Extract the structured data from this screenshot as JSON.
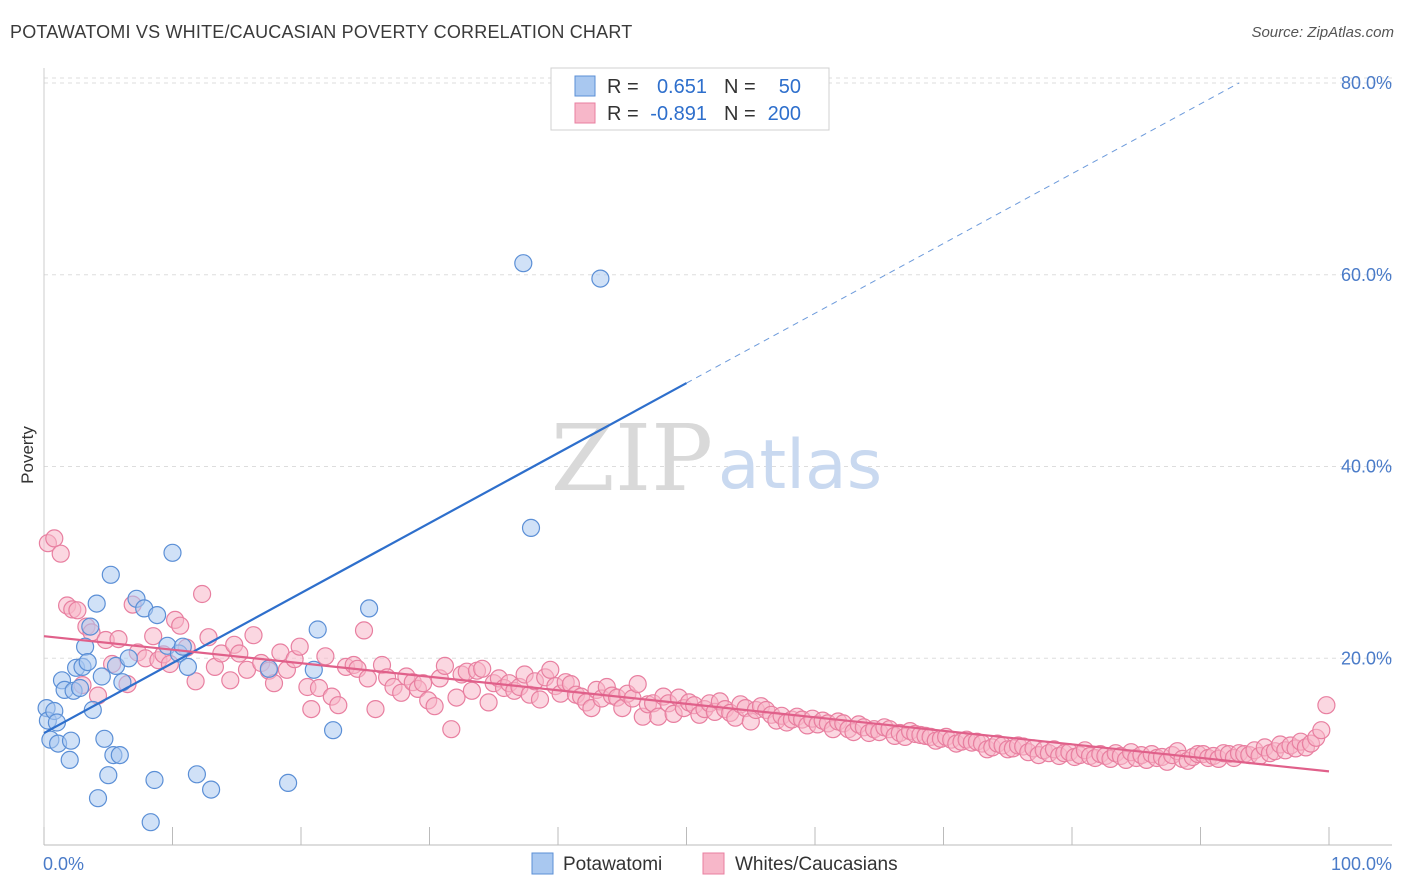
{
  "title": "POTAWATOMI VS WHITE/CAUCASIAN POVERTY CORRELATION CHART",
  "source": "Source: ZipAtlas.com",
  "watermark": {
    "zip": "ZIP",
    "atlas": "atlas"
  },
  "colors": {
    "blue_fill": "#a9c8f0",
    "blue_stroke": "#5b8fd6",
    "blue_line": "#2e6fcc",
    "pink_fill": "#f7b7c9",
    "pink_stroke": "#e87fa0",
    "pink_line": "#e0608a",
    "tick_text": "#4a7bc8",
    "grid": "#dddddd"
  },
  "legend": {
    "rows": [
      {
        "r_label": "R =",
        "r_value": "0.651",
        "n_label": "N =",
        "n_value": "50"
      },
      {
        "r_label": "R =",
        "r_value": "-0.891",
        "n_label": "N =",
        "n_value": "200"
      }
    ]
  },
  "chart_data": {
    "type": "scatter",
    "xlabel": "",
    "ylabel": "Poverty",
    "xlim": [
      0,
      100
    ],
    "ylim": [
      0,
      80
    ],
    "x_tick_labels": [
      "0.0%",
      "100.0%"
    ],
    "y_ticks": [
      20,
      40,
      60,
      80
    ],
    "y_tick_labels": [
      "20.0%",
      "40.0%",
      "60.0%",
      "80.0%"
    ],
    "grid": "horizontal dashed",
    "legend_position": "top-center",
    "series": [
      {
        "name": "Potawatomi",
        "trend": {
          "x0": 0,
          "y0": 12.2,
          "x1": 50,
          "y1": 48.7,
          "dashed_to_x": 93,
          "dashed_to_y": 80
        },
        "points": [
          [
            0.2,
            14.8
          ],
          [
            0.3,
            13.5
          ],
          [
            0.5,
            11.5
          ],
          [
            0.8,
            14.5
          ],
          [
            1.0,
            13.3
          ],
          [
            1.1,
            11.1
          ],
          [
            1.4,
            17.7
          ],
          [
            1.6,
            16.7
          ],
          [
            2.0,
            9.4
          ],
          [
            2.1,
            11.4
          ],
          [
            2.3,
            16.6
          ],
          [
            2.5,
            19.0
          ],
          [
            2.8,
            16.9
          ],
          [
            3.0,
            19.1
          ],
          [
            3.2,
            21.2
          ],
          [
            3.4,
            19.6
          ],
          [
            3.6,
            23.3
          ],
          [
            3.8,
            14.6
          ],
          [
            4.1,
            25.7
          ],
          [
            4.2,
            5.4
          ],
          [
            4.5,
            18.1
          ],
          [
            4.7,
            11.6
          ],
          [
            5.0,
            7.8
          ],
          [
            5.2,
            28.7
          ],
          [
            5.4,
            9.9
          ],
          [
            5.6,
            19.2
          ],
          [
            5.9,
            9.9
          ],
          [
            6.1,
            17.5
          ],
          [
            6.6,
            20.0
          ],
          [
            7.2,
            26.2
          ],
          [
            7.8,
            25.2
          ],
          [
            8.3,
            2.9
          ],
          [
            8.6,
            7.3
          ],
          [
            8.8,
            24.5
          ],
          [
            9.6,
            21.3
          ],
          [
            10.0,
            31.0
          ],
          [
            10.5,
            20.5
          ],
          [
            10.8,
            21.2
          ],
          [
            11.2,
            19.1
          ],
          [
            11.9,
            7.9
          ],
          [
            13.0,
            6.3
          ],
          [
            17.5,
            18.9
          ],
          [
            19.0,
            7.0
          ],
          [
            21.3,
            23.0
          ],
          [
            21.0,
            18.8
          ],
          [
            22.5,
            12.5
          ],
          [
            25.3,
            25.2
          ],
          [
            37.9,
            33.6
          ],
          [
            37.3,
            61.2
          ],
          [
            43.3,
            59.6
          ]
        ]
      },
      {
        "name": "Whites/Caucasians",
        "trend": {
          "x0": 0,
          "y0": 22.3,
          "x1": 100,
          "y1": 8.2
        },
        "points": [
          [
            0.3,
            32.0
          ],
          [
            0.8,
            32.5
          ],
          [
            1.3,
            30.9
          ],
          [
            1.8,
            25.5
          ],
          [
            2.2,
            25.1
          ],
          [
            2.6,
            25.0
          ],
          [
            3.0,
            17.2
          ],
          [
            3.3,
            23.3
          ],
          [
            3.7,
            22.7
          ],
          [
            4.2,
            16.1
          ],
          [
            4.8,
            21.9
          ],
          [
            5.3,
            19.4
          ],
          [
            5.8,
            22.0
          ],
          [
            6.5,
            17.3
          ],
          [
            6.9,
            25.6
          ],
          [
            7.3,
            20.6
          ],
          [
            7.9,
            20.0
          ],
          [
            8.5,
            22.3
          ],
          [
            8.9,
            19.8
          ],
          [
            9.3,
            20.4
          ],
          [
            9.8,
            19.4
          ],
          [
            10.2,
            24.0
          ],
          [
            10.6,
            23.4
          ],
          [
            11.1,
            21.1
          ],
          [
            11.8,
            17.6
          ],
          [
            12.3,
            26.7
          ],
          [
            12.8,
            22.2
          ],
          [
            13.3,
            19.1
          ],
          [
            13.8,
            20.5
          ],
          [
            14.5,
            17.7
          ],
          [
            14.8,
            21.4
          ],
          [
            15.2,
            20.5
          ],
          [
            15.8,
            18.8
          ],
          [
            16.3,
            22.4
          ],
          [
            16.9,
            19.5
          ],
          [
            17.5,
            18.7
          ],
          [
            17.9,
            17.4
          ],
          [
            18.4,
            20.6
          ],
          [
            18.9,
            18.8
          ],
          [
            19.5,
            19.9
          ],
          [
            19.9,
            21.2
          ],
          [
            20.5,
            17.0
          ],
          [
            20.8,
            14.7
          ],
          [
            21.4,
            16.9
          ],
          [
            21.9,
            20.2
          ],
          [
            22.4,
            16.0
          ],
          [
            22.9,
            15.1
          ],
          [
            23.5,
            19.1
          ],
          [
            24.1,
            19.3
          ],
          [
            24.4,
            18.9
          ],
          [
            24.9,
            22.9
          ],
          [
            25.2,
            17.9
          ],
          [
            25.8,
            14.7
          ],
          [
            26.3,
            19.3
          ],
          [
            26.7,
            18.0
          ],
          [
            27.2,
            17.0
          ],
          [
            27.8,
            16.4
          ],
          [
            28.2,
            18.1
          ],
          [
            28.7,
            17.5
          ],
          [
            29.1,
            16.8
          ],
          [
            29.5,
            17.4
          ],
          [
            29.9,
            15.6
          ],
          [
            30.4,
            15.0
          ],
          [
            30.8,
            17.9
          ],
          [
            31.2,
            19.2
          ],
          [
            31.7,
            12.6
          ],
          [
            32.1,
            15.9
          ],
          [
            32.5,
            18.3
          ],
          [
            32.9,
            18.6
          ],
          [
            33.3,
            16.6
          ],
          [
            33.7,
            18.7
          ],
          [
            34.1,
            18.9
          ],
          [
            34.6,
            15.4
          ],
          [
            35.0,
            17.4
          ],
          [
            35.4,
            17.9
          ],
          [
            35.8,
            16.9
          ],
          [
            36.2,
            17.4
          ],
          [
            36.6,
            16.6
          ],
          [
            37.0,
            17.0
          ],
          [
            37.4,
            18.3
          ],
          [
            37.8,
            16.2
          ],
          [
            38.2,
            17.6
          ],
          [
            38.6,
            15.7
          ],
          [
            39.0,
            18.0
          ],
          [
            39.4,
            18.8
          ],
          [
            39.8,
            17.1
          ],
          [
            40.2,
            16.3
          ],
          [
            40.6,
            17.5
          ],
          [
            41.0,
            17.3
          ],
          [
            41.4,
            16.2
          ],
          [
            41.8,
            16.0
          ],
          [
            42.2,
            15.4
          ],
          [
            42.6,
            14.8
          ],
          [
            43.0,
            16.7
          ],
          [
            43.4,
            15.8
          ],
          [
            43.8,
            17.0
          ],
          [
            44.2,
            16.1
          ],
          [
            44.6,
            15.9
          ],
          [
            45.0,
            14.8
          ],
          [
            45.4,
            16.3
          ],
          [
            45.8,
            15.8
          ],
          [
            46.2,
            17.3
          ],
          [
            46.6,
            13.9
          ],
          [
            47.0,
            15.2
          ],
          [
            47.4,
            15.3
          ],
          [
            47.8,
            13.9
          ],
          [
            48.2,
            16.0
          ],
          [
            48.6,
            15.3
          ],
          [
            49.0,
            14.2
          ],
          [
            49.4,
            15.9
          ],
          [
            49.8,
            14.8
          ],
          [
            50.2,
            15.4
          ],
          [
            50.6,
            15.1
          ],
          [
            51.0,
            14.1
          ],
          [
            51.4,
            14.7
          ],
          [
            51.8,
            15.3
          ],
          [
            52.2,
            14.4
          ],
          [
            52.6,
            15.5
          ],
          [
            53.0,
            14.7
          ],
          [
            53.4,
            14.3
          ],
          [
            53.8,
            13.8
          ],
          [
            54.2,
            15.2
          ],
          [
            54.6,
            14.8
          ],
          [
            55.0,
            13.4
          ],
          [
            55.4,
            14.6
          ],
          [
            55.8,
            15.0
          ],
          [
            56.2,
            14.6
          ],
          [
            56.6,
            14.1
          ],
          [
            57.0,
            13.5
          ],
          [
            57.4,
            14.0
          ],
          [
            57.8,
            13.3
          ],
          [
            58.2,
            13.6
          ],
          [
            58.6,
            13.9
          ],
          [
            59.0,
            13.6
          ],
          [
            59.4,
            13.0
          ],
          [
            59.8,
            13.7
          ],
          [
            60.2,
            13.1
          ],
          [
            60.6,
            13.5
          ],
          [
            61.0,
            13.2
          ],
          [
            61.4,
            12.6
          ],
          [
            61.8,
            13.4
          ],
          [
            62.2,
            13.2
          ],
          [
            62.6,
            12.6
          ],
          [
            63.0,
            12.3
          ],
          [
            63.4,
            13.1
          ],
          [
            63.8,
            12.8
          ],
          [
            64.2,
            12.2
          ],
          [
            64.6,
            12.6
          ],
          [
            65.0,
            12.3
          ],
          [
            65.4,
            12.8
          ],
          [
            65.8,
            12.6
          ],
          [
            66.2,
            11.9
          ],
          [
            66.6,
            12.2
          ],
          [
            67.0,
            11.8
          ],
          [
            67.4,
            12.4
          ],
          [
            67.8,
            12.1
          ],
          [
            68.2,
            12.0
          ],
          [
            68.6,
            11.9
          ],
          [
            69.0,
            11.8
          ],
          [
            69.4,
            11.4
          ],
          [
            69.8,
            11.6
          ],
          [
            70.2,
            11.8
          ],
          [
            70.6,
            11.5
          ],
          [
            71.0,
            11.1
          ],
          [
            71.4,
            11.3
          ],
          [
            71.8,
            11.5
          ],
          [
            72.2,
            11.2
          ],
          [
            72.6,
            11.3
          ],
          [
            73.0,
            11.1
          ],
          [
            73.4,
            10.5
          ],
          [
            73.8,
            10.7
          ],
          [
            74.2,
            11.1
          ],
          [
            74.6,
            10.9
          ],
          [
            75.0,
            10.5
          ],
          [
            75.4,
            10.6
          ],
          [
            75.8,
            10.9
          ],
          [
            76.2,
            10.8
          ],
          [
            76.6,
            10.2
          ],
          [
            77.0,
            10.6
          ],
          [
            77.4,
            9.9
          ],
          [
            77.8,
            10.4
          ],
          [
            78.2,
            10.1
          ],
          [
            78.6,
            10.5
          ],
          [
            79.0,
            9.8
          ],
          [
            79.4,
            10.1
          ],
          [
            79.8,
            10.2
          ],
          [
            80.2,
            9.7
          ],
          [
            80.6,
            9.9
          ],
          [
            81.0,
            10.4
          ],
          [
            81.4,
            9.8
          ],
          [
            81.8,
            9.6
          ],
          [
            82.2,
            10.0
          ],
          [
            82.6,
            9.8
          ],
          [
            83.0,
            9.5
          ],
          [
            83.4,
            10.1
          ],
          [
            83.8,
            9.8
          ],
          [
            84.2,
            9.4
          ],
          [
            84.6,
            10.2
          ],
          [
            85.0,
            9.6
          ],
          [
            85.4,
            9.9
          ],
          [
            85.8,
            9.4
          ],
          [
            86.2,
            10.0
          ],
          [
            86.6,
            9.6
          ],
          [
            87.0,
            9.7
          ],
          [
            87.4,
            9.2
          ],
          [
            87.8,
            9.9
          ],
          [
            88.2,
            10.3
          ],
          [
            88.6,
            9.5
          ],
          [
            89.0,
            9.3
          ],
          [
            89.4,
            9.7
          ],
          [
            89.8,
            10.0
          ],
          [
            90.2,
            10.0
          ],
          [
            90.6,
            9.6
          ],
          [
            91.0,
            9.8
          ],
          [
            91.4,
            9.5
          ],
          [
            91.8,
            10.1
          ],
          [
            92.2,
            10.0
          ],
          [
            92.6,
            9.6
          ],
          [
            93.0,
            10.1
          ],
          [
            93.4,
            10.0
          ],
          [
            93.8,
            9.9
          ],
          [
            94.2,
            10.4
          ],
          [
            94.6,
            9.8
          ],
          [
            95.0,
            10.7
          ],
          [
            95.4,
            10.1
          ],
          [
            95.8,
            10.3
          ],
          [
            96.2,
            11.0
          ],
          [
            96.6,
            10.4
          ],
          [
            97.0,
            10.9
          ],
          [
            97.4,
            10.6
          ],
          [
            97.8,
            11.3
          ],
          [
            98.2,
            10.7
          ],
          [
            98.6,
            11.1
          ],
          [
            99.0,
            11.7
          ],
          [
            99.4,
            12.5
          ],
          [
            99.8,
            15.1
          ]
        ]
      }
    ]
  }
}
